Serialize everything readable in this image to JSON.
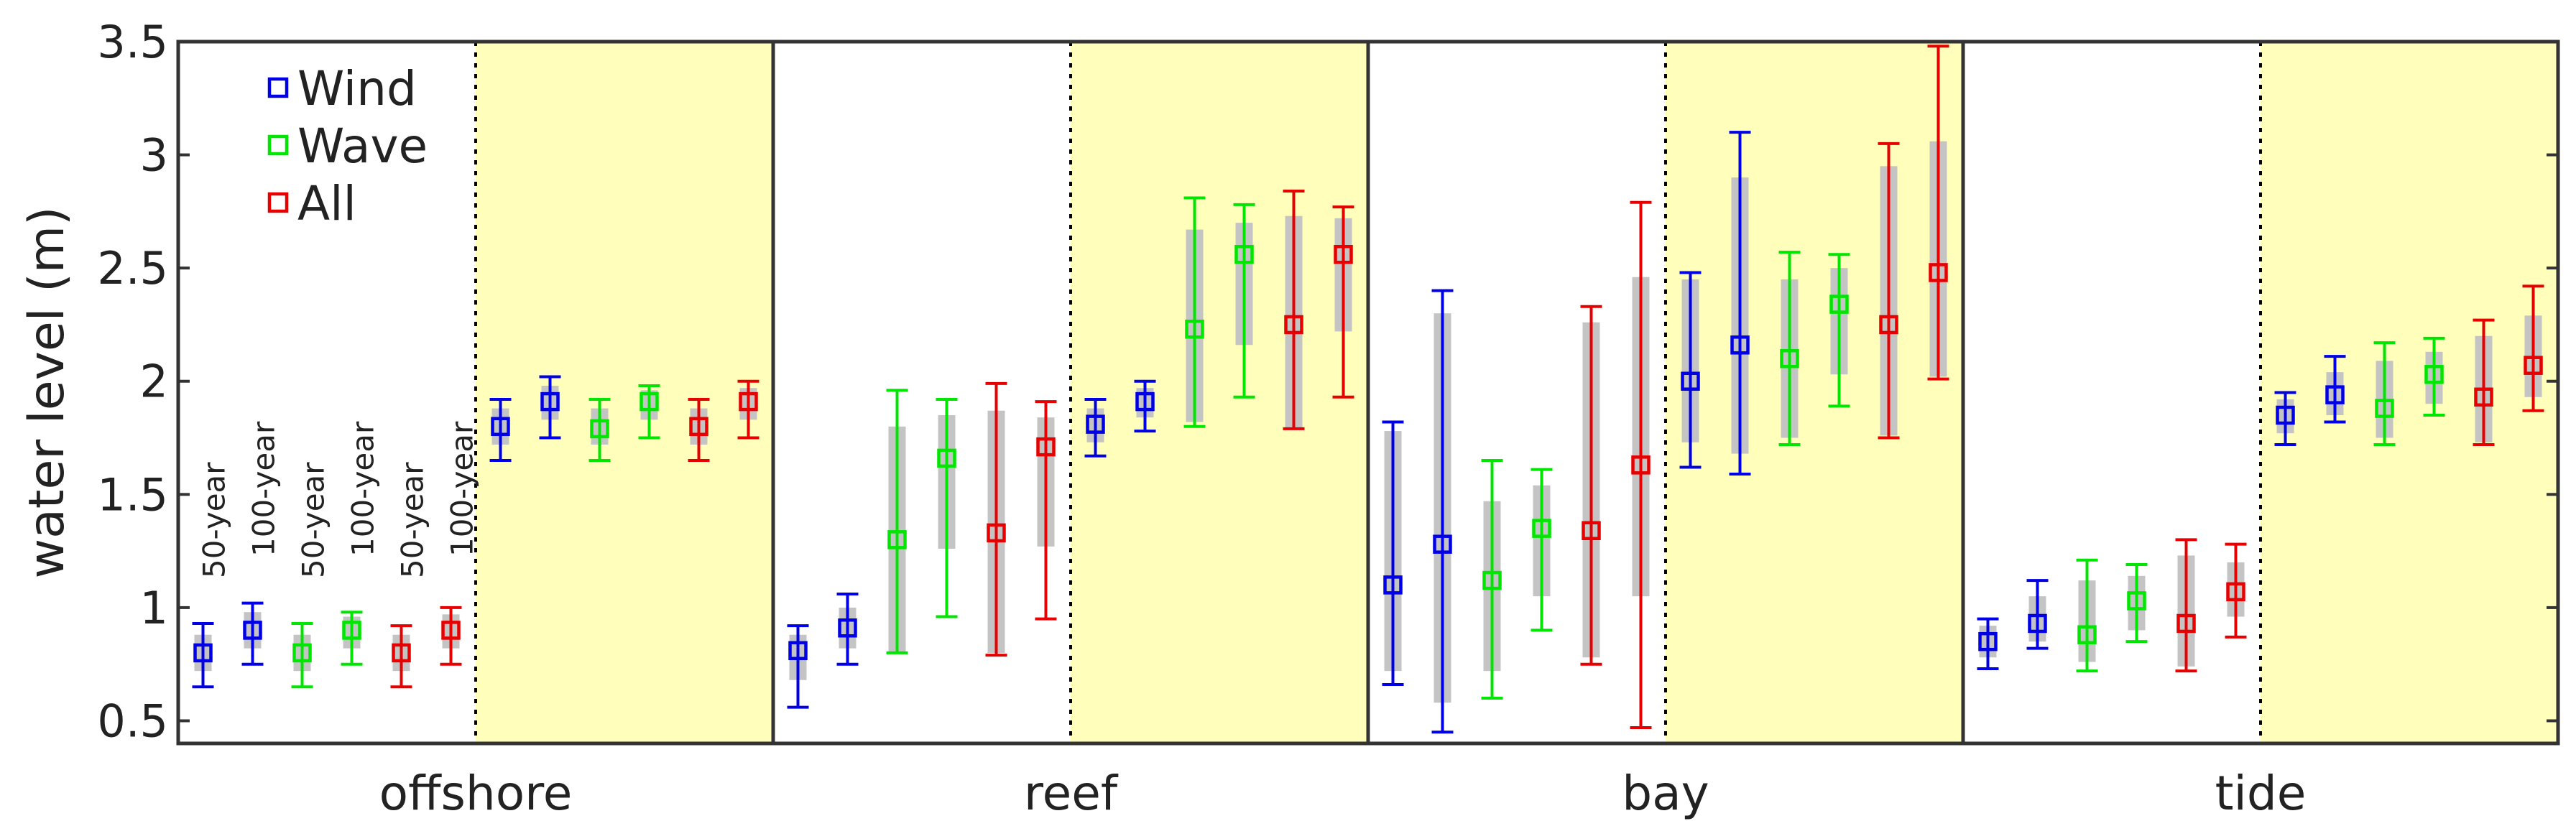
{
  "chart_data": {
    "type": "scatter",
    "ylabel": "water level (m)",
    "ylim": [
      0.4,
      3.5
    ],
    "yticks": [
      "0.5",
      "1",
      "1.5",
      "2",
      "2.5",
      "3",
      "3.5"
    ],
    "grid": false,
    "legend_position": "top-left",
    "groups": [
      "offshore",
      "reef",
      "bay",
      "tide"
    ],
    "periods": [
      "50-year",
      "100-year"
    ],
    "period_labels": [
      "50-year",
      "100-year",
      "50-year",
      "100-year",
      "50-year",
      "100-year"
    ],
    "shaded_period": "100-year",
    "series": [
      {
        "name": "Wind",
        "color": "#0000e6",
        "points": [
          {
            "group": "offshore",
            "period": "50-year",
            "y": 0.8,
            "lo": 0.65,
            "hi": 0.93,
            "box_lo": 0.72,
            "box_hi": 0.88
          },
          {
            "group": "offshore",
            "period": "50-year",
            "y": 0.9,
            "lo": 0.75,
            "hi": 1.02,
            "box_lo": 0.82,
            "box_hi": 0.98
          },
          {
            "group": "offshore",
            "period": "100-year",
            "y": 1.8,
            "lo": 1.65,
            "hi": 1.92,
            "box_lo": 1.72,
            "box_hi": 1.88
          },
          {
            "group": "offshore",
            "period": "100-year",
            "y": 1.91,
            "lo": 1.75,
            "hi": 2.02,
            "box_lo": 1.83,
            "box_hi": 1.98
          },
          {
            "group": "reef",
            "period": "50-year",
            "y": 0.81,
            "lo": 0.56,
            "hi": 0.92,
            "box_lo": 0.68,
            "box_hi": 0.88
          },
          {
            "group": "reef",
            "period": "50-year",
            "y": 0.91,
            "lo": 0.75,
            "hi": 1.06,
            "box_lo": 0.82,
            "box_hi": 1.0
          },
          {
            "group": "reef",
            "period": "100-year",
            "y": 1.81,
            "lo": 1.67,
            "hi": 1.92,
            "box_lo": 1.73,
            "box_hi": 1.88
          },
          {
            "group": "reef",
            "period": "100-year",
            "y": 1.91,
            "lo": 1.78,
            "hi": 2.0,
            "box_lo": 1.84,
            "box_hi": 1.97
          },
          {
            "group": "bay",
            "period": "50-year",
            "y": 1.1,
            "lo": 0.66,
            "hi": 1.82,
            "box_lo": 0.72,
            "box_hi": 1.78
          },
          {
            "group": "bay",
            "period": "50-year",
            "y": 1.28,
            "lo": 0.45,
            "hi": 2.4,
            "box_lo": 0.58,
            "box_hi": 2.3
          },
          {
            "group": "bay",
            "period": "100-year",
            "y": 2.0,
            "lo": 1.62,
            "hi": 2.48,
            "box_lo": 1.73,
            "box_hi": 2.45
          },
          {
            "group": "bay",
            "period": "100-year",
            "y": 2.16,
            "lo": 1.59,
            "hi": 3.1,
            "box_lo": 1.68,
            "box_hi": 2.9
          },
          {
            "group": "tide",
            "period": "50-year",
            "y": 0.85,
            "lo": 0.73,
            "hi": 0.95,
            "box_lo": 0.78,
            "box_hi": 0.92
          },
          {
            "group": "tide",
            "period": "50-year",
            "y": 0.93,
            "lo": 0.82,
            "hi": 1.12,
            "box_lo": 0.85,
            "box_hi": 1.05
          },
          {
            "group": "tide",
            "period": "100-year",
            "y": 1.85,
            "lo": 1.72,
            "hi": 1.95,
            "box_lo": 1.77,
            "box_hi": 1.92
          },
          {
            "group": "tide",
            "period": "100-year",
            "y": 1.94,
            "lo": 1.82,
            "hi": 2.11,
            "box_lo": 1.85,
            "box_hi": 2.04
          }
        ]
      },
      {
        "name": "Wave",
        "color": "#00e600",
        "points": [
          {
            "group": "offshore",
            "period": "50-year",
            "y": 0.8,
            "lo": 0.65,
            "hi": 0.93,
            "box_lo": 0.72,
            "box_hi": 0.88
          },
          {
            "group": "offshore",
            "period": "50-year",
            "y": 0.9,
            "lo": 0.75,
            "hi": 0.98,
            "box_lo": 0.82,
            "box_hi": 0.96
          },
          {
            "group": "offshore",
            "period": "100-year",
            "y": 1.79,
            "lo": 1.65,
            "hi": 1.92,
            "box_lo": 1.72,
            "box_hi": 1.88
          },
          {
            "group": "offshore",
            "period": "100-year",
            "y": 1.91,
            "lo": 1.75,
            "hi": 1.98,
            "box_lo": 1.83,
            "box_hi": 1.96
          },
          {
            "group": "reef",
            "period": "50-year",
            "y": 1.3,
            "lo": 0.8,
            "hi": 1.96,
            "box_lo": 0.8,
            "box_hi": 1.8
          },
          {
            "group": "reef",
            "period": "50-year",
            "y": 1.66,
            "lo": 0.96,
            "hi": 1.92,
            "box_lo": 1.26,
            "box_hi": 1.85
          },
          {
            "group": "reef",
            "period": "100-year",
            "y": 2.23,
            "lo": 1.8,
            "hi": 2.81,
            "box_lo": 1.82,
            "box_hi": 2.67
          },
          {
            "group": "reef",
            "period": "100-year",
            "y": 2.56,
            "lo": 1.93,
            "hi": 2.78,
            "box_lo": 2.16,
            "box_hi": 2.7
          },
          {
            "group": "bay",
            "period": "50-year",
            "y": 1.12,
            "lo": 0.6,
            "hi": 1.65,
            "box_lo": 0.72,
            "box_hi": 1.47
          },
          {
            "group": "bay",
            "period": "50-year",
            "y": 1.35,
            "lo": 0.9,
            "hi": 1.61,
            "box_lo": 1.05,
            "box_hi": 1.54
          },
          {
            "group": "bay",
            "period": "100-year",
            "y": 2.1,
            "lo": 1.72,
            "hi": 2.57,
            "box_lo": 1.75,
            "box_hi": 2.45
          },
          {
            "group": "bay",
            "period": "100-year",
            "y": 2.34,
            "lo": 1.89,
            "hi": 2.56,
            "box_lo": 2.03,
            "box_hi": 2.5
          },
          {
            "group": "tide",
            "period": "50-year",
            "y": 0.88,
            "lo": 0.72,
            "hi": 1.21,
            "box_lo": 0.76,
            "box_hi": 1.12
          },
          {
            "group": "tide",
            "period": "50-year",
            "y": 1.03,
            "lo": 0.85,
            "hi": 1.19,
            "box_lo": 0.9,
            "box_hi": 1.14
          },
          {
            "group": "tide",
            "period": "100-year",
            "y": 1.88,
            "lo": 1.72,
            "hi": 2.17,
            "box_lo": 1.75,
            "box_hi": 2.09
          },
          {
            "group": "tide",
            "period": "100-year",
            "y": 2.03,
            "lo": 1.85,
            "hi": 2.19,
            "box_lo": 1.9,
            "box_hi": 2.13
          }
        ]
      },
      {
        "name": "All",
        "color": "#e60000",
        "points": [
          {
            "group": "offshore",
            "period": "50-year",
            "y": 0.8,
            "lo": 0.65,
            "hi": 0.92,
            "box_lo": 0.72,
            "box_hi": 0.88
          },
          {
            "group": "offshore",
            "period": "50-year",
            "y": 0.9,
            "lo": 0.75,
            "hi": 1.0,
            "box_lo": 0.82,
            "box_hi": 0.97
          },
          {
            "group": "offshore",
            "period": "100-year",
            "y": 1.8,
            "lo": 1.65,
            "hi": 1.92,
            "box_lo": 1.72,
            "box_hi": 1.88
          },
          {
            "group": "offshore",
            "period": "100-year",
            "y": 1.91,
            "lo": 1.75,
            "hi": 2.0,
            "box_lo": 1.83,
            "box_hi": 1.97
          },
          {
            "group": "reef",
            "period": "50-year",
            "y": 1.33,
            "lo": 0.79,
            "hi": 1.99,
            "box_lo": 0.8,
            "box_hi": 1.87
          },
          {
            "group": "reef",
            "period": "50-year",
            "y": 1.71,
            "lo": 0.95,
            "hi": 1.91,
            "box_lo": 1.27,
            "box_hi": 1.84
          },
          {
            "group": "reef",
            "period": "100-year",
            "y": 2.25,
            "lo": 1.79,
            "hi": 2.84,
            "box_lo": 1.79,
            "box_hi": 2.73
          },
          {
            "group": "reef",
            "period": "100-year",
            "y": 2.56,
            "lo": 1.93,
            "hi": 2.77,
            "box_lo": 2.22,
            "box_hi": 2.72
          },
          {
            "group": "bay",
            "period": "50-year",
            "y": 1.34,
            "lo": 0.75,
            "hi": 2.33,
            "box_lo": 0.78,
            "box_hi": 2.26
          },
          {
            "group": "bay",
            "period": "50-year",
            "y": 1.63,
            "lo": 0.47,
            "hi": 2.79,
            "box_lo": 1.05,
            "box_hi": 2.46
          },
          {
            "group": "bay",
            "period": "100-year",
            "y": 2.25,
            "lo": 1.75,
            "hi": 3.05,
            "box_lo": 1.76,
            "box_hi": 2.95
          },
          {
            "group": "bay",
            "period": "100-year",
            "y": 2.48,
            "lo": 2.01,
            "hi": 3.48,
            "box_lo": 2.02,
            "box_hi": 3.06
          },
          {
            "group": "tide",
            "period": "50-year",
            "y": 0.93,
            "lo": 0.72,
            "hi": 1.3,
            "box_lo": 0.74,
            "box_hi": 1.23
          },
          {
            "group": "tide",
            "period": "50-year",
            "y": 1.07,
            "lo": 0.87,
            "hi": 1.28,
            "box_lo": 0.96,
            "box_hi": 1.2
          },
          {
            "group": "tide",
            "period": "100-year",
            "y": 1.93,
            "lo": 1.72,
            "hi": 2.27,
            "box_lo": 1.73,
            "box_hi": 2.2
          },
          {
            "group": "tide",
            "period": "100-year",
            "y": 2.07,
            "lo": 1.87,
            "hi": 2.42,
            "box_lo": 1.93,
            "box_hi": 2.29
          }
        ]
      }
    ]
  },
  "colors": {
    "shade": "#ffffbb",
    "range_bar": "#c4c4c4",
    "axis": "#333333"
  }
}
